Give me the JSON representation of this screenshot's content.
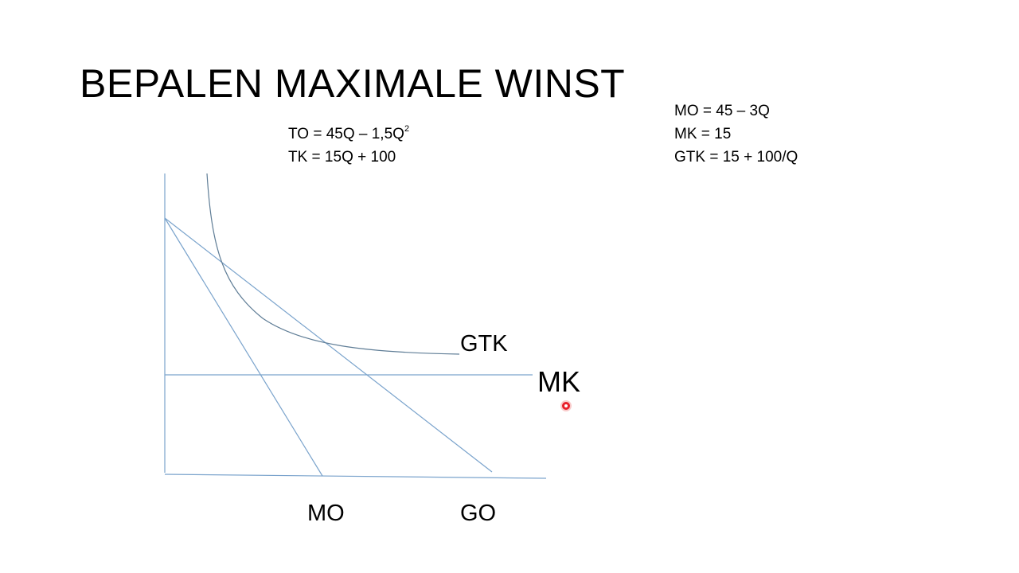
{
  "slide": {
    "title": "BEPALEN MAXIMALE WINST"
  },
  "formulas_left": {
    "to_main": "TO = 45Q – 1,5Q",
    "to_exponent": "2",
    "tk": "TK = 15Q + 100"
  },
  "formulas_right": {
    "mo": "MO = 45 – 3Q",
    "mk": "MK =  15",
    "gtk": "GTK = 15 + 100/Q"
  },
  "diagram": {
    "labels": {
      "gtk": "GTK",
      "mk": "MK",
      "mo": "MO",
      "go": "GO"
    },
    "colors": {
      "line": "#7aa3cc",
      "curve": "#5f7d96",
      "pointer": "#e8202a"
    }
  }
}
